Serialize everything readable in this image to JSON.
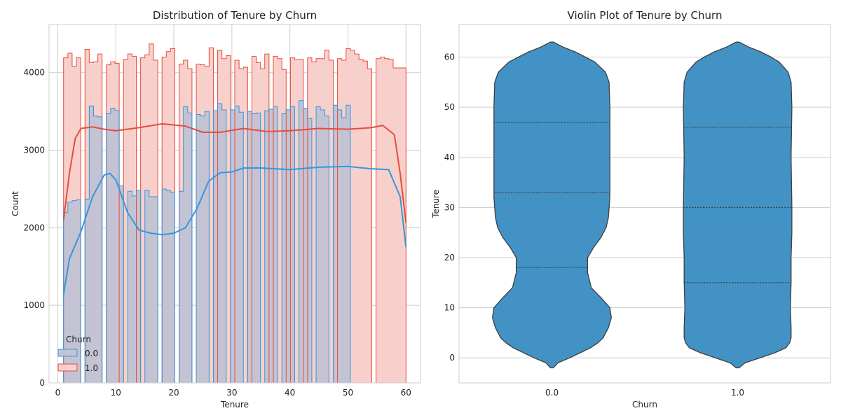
{
  "chart_data": [
    {
      "type": "histogram",
      "title": "Distribution of Tenure by Churn",
      "xlabel": "Tenure",
      "ylabel": "Count",
      "xlim": [
        -1.5,
        62.5
      ],
      "ylim": [
        0,
        4620
      ],
      "xticks": [
        0,
        10,
        20,
        30,
        40,
        50,
        60
      ],
      "yticks": [
        0,
        1000,
        2000,
        3000,
        4000
      ],
      "grid": true,
      "legend": {
        "title": "Churn",
        "placement": "bottom-left",
        "entries": [
          "0.0",
          "1.0"
        ]
      },
      "bin_edges": [
        1,
        1.738,
        2.475,
        3.213,
        3.95,
        4.688,
        5.425,
        6.163,
        6.9,
        7.638,
        8.375,
        9.113,
        9.85,
        10.588,
        11.325,
        12.063,
        12.8,
        13.538,
        14.275,
        15.013,
        15.75,
        16.488,
        17.225,
        17.963,
        18.7,
        19.438,
        20.175,
        20.913,
        21.65,
        22.388,
        23.125,
        23.863,
        24.6,
        25.338,
        26.075,
        26.813,
        27.55,
        28.288,
        29.025,
        29.763,
        30.5,
        31.238,
        31.975,
        32.713,
        33.45,
        34.188,
        34.925,
        35.663,
        36.4,
        37.138,
        37.875,
        38.613,
        39.35,
        40.088,
        40.825,
        41.563,
        42.3,
        43.038,
        43.775,
        44.513,
        45.25,
        45.988,
        46.725,
        47.463,
        48.2,
        48.938,
        49.675,
        50.413,
        51.15,
        51.888,
        52.625,
        53.363,
        54.1,
        54.838,
        55.575,
        56.313,
        57.05,
        57.788,
        58.525,
        59.263,
        60
      ],
      "series": [
        {
          "name": "0.0",
          "color": "#3498db",
          "fill": "#c4c3d4",
          "counts": [
            2200,
            2330,
            2350,
            2360,
            0,
            2370,
            3570,
            3440,
            3430,
            0,
            3470,
            3540,
            3510,
            2540,
            0,
            2470,
            2410,
            2480,
            0,
            2480,
            2400,
            2400,
            0,
            2500,
            2480,
            2460,
            0,
            2470,
            3560,
            3480,
            0,
            3460,
            3440,
            3500,
            0,
            3510,
            3600,
            3520,
            0,
            3520,
            3570,
            3490,
            0,
            3500,
            3470,
            3480,
            0,
            3510,
            3530,
            3560,
            0,
            3470,
            3520,
            3560,
            0,
            3640,
            3540,
            3410,
            0,
            3560,
            3520,
            3440,
            0,
            3580,
            3520,
            3420,
            3580,
            0,
            0,
            0,
            0,
            0,
            0,
            0,
            0,
            0,
            0,
            0,
            0,
            0
          ],
          "kde": [
            [
              1,
              1140
            ],
            [
              2,
              1600
            ],
            [
              4,
              1950
            ],
            [
              6,
              2400
            ],
            [
              8,
              2680
            ],
            [
              9,
              2700
            ],
            [
              10,
              2620
            ],
            [
              12,
              2200
            ],
            [
              14,
              1970
            ],
            [
              16,
              1930
            ],
            [
              18,
              1910
            ],
            [
              20,
              1930
            ],
            [
              22,
              2000
            ],
            [
              24,
              2250
            ],
            [
              26,
              2600
            ],
            [
              28,
              2710
            ],
            [
              30,
              2720
            ],
            [
              32,
              2770
            ],
            [
              35,
              2770
            ],
            [
              40,
              2750
            ],
            [
              45,
              2780
            ],
            [
              50,
              2790
            ],
            [
              54,
              2760
            ],
            [
              57,
              2750
            ],
            [
              59,
              2400
            ],
            [
              60,
              1750
            ]
          ]
        },
        {
          "name": "1.0",
          "color": "#e74c3c",
          "fill": "#f8d0cb",
          "counts": [
            4190,
            4250,
            4080,
            4190,
            0,
            4300,
            4130,
            4140,
            4240,
            0,
            4100,
            4140,
            4120,
            0,
            4170,
            4240,
            4210,
            0,
            4190,
            4230,
            4370,
            4160,
            0,
            4200,
            4270,
            4310,
            0,
            4110,
            4160,
            4050,
            0,
            4110,
            4100,
            4080,
            4320,
            0,
            4290,
            4180,
            4220,
            0,
            4160,
            4050,
            4070,
            0,
            4210,
            4130,
            4050,
            4240,
            0,
            4210,
            4180,
            4040,
            0,
            4190,
            4170,
            4170,
            0,
            4190,
            4140,
            4180,
            4180,
            4290,
            4160,
            0,
            4180,
            4160,
            4310,
            4290,
            4240,
            4170,
            4150,
            4050,
            0,
            4180,
            4200,
            4180,
            4170,
            4060,
            4060,
            4060
          ],
          "kde": [
            [
              1,
              2100
            ],
            [
              2,
              2700
            ],
            [
              3,
              3150
            ],
            [
              4,
              3280
            ],
            [
              6,
              3300
            ],
            [
              8,
              3270
            ],
            [
              10,
              3250
            ],
            [
              14,
              3290
            ],
            [
              18,
              3340
            ],
            [
              22,
              3310
            ],
            [
              25,
              3230
            ],
            [
              28,
              3230
            ],
            [
              32,
              3280
            ],
            [
              36,
              3240
            ],
            [
              40,
              3250
            ],
            [
              45,
              3280
            ],
            [
              50,
              3270
            ],
            [
              54,
              3290
            ],
            [
              56,
              3320
            ],
            [
              58,
              3200
            ],
            [
              59,
              2700
            ],
            [
              60,
              2060
            ]
          ]
        }
      ]
    },
    {
      "type": "violin",
      "title": "Violin Plot of Tenure by Churn",
      "xlabel": "Churn",
      "ylabel": "Tenure",
      "categories": [
        "0.0",
        "1.0"
      ],
      "ylim": [
        -5,
        66.5
      ],
      "yticks": [
        0,
        10,
        20,
        30,
        40,
        50,
        60
      ],
      "grid": true,
      "color": "#4292c6",
      "violins": [
        {
          "category": "0.0",
          "quartiles": [
            18,
            33,
            47
          ],
          "profile": [
            [
              -2,
              0.02
            ],
            [
              -1,
              0.08
            ],
            [
              0,
              0.24
            ],
            [
              1,
              0.38
            ],
            [
              2,
              0.52
            ],
            [
              3,
              0.62
            ],
            [
              4,
              0.69
            ],
            [
              6,
              0.76
            ],
            [
              8,
              0.8
            ],
            [
              10,
              0.78
            ],
            [
              12,
              0.66
            ],
            [
              14,
              0.53
            ],
            [
              17,
              0.48
            ],
            [
              20,
              0.48
            ],
            [
              22,
              0.56
            ],
            [
              24,
              0.66
            ],
            [
              26,
              0.73
            ],
            [
              28,
              0.76
            ],
            [
              32,
              0.78
            ],
            [
              40,
              0.78
            ],
            [
              50,
              0.78
            ],
            [
              55,
              0.77
            ],
            [
              57,
              0.72
            ],
            [
              59,
              0.58
            ],
            [
              60,
              0.45
            ],
            [
              61,
              0.32
            ],
            [
              62,
              0.15
            ],
            [
              63,
              0.02
            ]
          ]
        },
        {
          "category": "1.0",
          "quartiles": [
            15,
            30,
            46
          ],
          "profile": [
            [
              -2,
              0.02
            ],
            [
              -1,
              0.1
            ],
            [
              0,
              0.3
            ],
            [
              1,
              0.5
            ],
            [
              2,
              0.65
            ],
            [
              3,
              0.7
            ],
            [
              4,
              0.72
            ],
            [
              6,
              0.72
            ],
            [
              10,
              0.71
            ],
            [
              15,
              0.72
            ],
            [
              20,
              0.72
            ],
            [
              25,
              0.73
            ],
            [
              30,
              0.73
            ],
            [
              40,
              0.72
            ],
            [
              50,
              0.73
            ],
            [
              55,
              0.72
            ],
            [
              57,
              0.68
            ],
            [
              59,
              0.56
            ],
            [
              60,
              0.45
            ],
            [
              61,
              0.32
            ],
            [
              62,
              0.15
            ],
            [
              63,
              0.02
            ]
          ]
        }
      ]
    }
  ]
}
